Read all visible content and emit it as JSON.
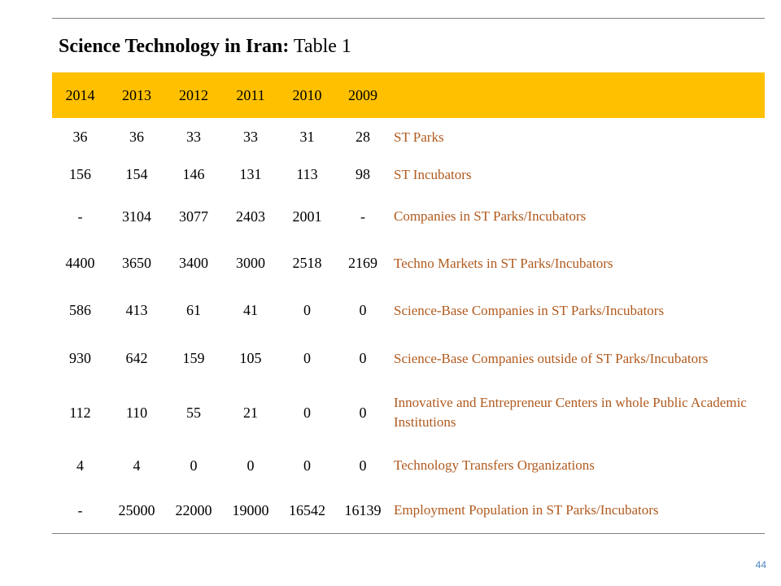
{
  "title": {
    "bold": "Science Technology in Iran:",
    "rest": " Table 1"
  },
  "columns": [
    "2014",
    "2013",
    "2012",
    "2011",
    "2010",
    "2009",
    ""
  ],
  "rows": [
    {
      "values": [
        "36",
        "36",
        "33",
        "33",
        "31",
        "28"
      ],
      "label": "ST Parks"
    },
    {
      "values": [
        "156",
        "154",
        "146",
        "131",
        "113",
        "98"
      ],
      "label": "ST Incubators"
    },
    {
      "values": [
        "-",
        "3104",
        "3077",
        "2403",
        "2001",
        "-"
      ],
      "label": "Companies in ST Parks/Incubators"
    },
    {
      "values": [
        "4400",
        "3650",
        "3400",
        "3000",
        "2518",
        "2169"
      ],
      "label": "Techno Markets in ST Parks/Incubators"
    },
    {
      "values": [
        "586",
        "413",
        "61",
        "41",
        "0",
        "0"
      ],
      "label": "Science-Base Companies in ST Parks/Incubators"
    },
    {
      "values": [
        "930",
        "642",
        "159",
        "105",
        "0",
        "0"
      ],
      "label": "Science-Base Companies outside of ST Parks/Incubators"
    },
    {
      "values": [
        "112",
        "110",
        "55",
        "21",
        "0",
        "0"
      ],
      "label": "Innovative and Entrepreneur Centers in whole Public Academic Institutions"
    },
    {
      "values": [
        "4",
        "4",
        "0",
        "0",
        "0",
        "0"
      ],
      "label": "Technology Transfers Organizations"
    },
    {
      "values": [
        "-",
        "25000",
        "22000",
        "19000",
        "16542",
        "16139"
      ],
      "label": "Employment Population in ST Parks/Incubators"
    }
  ],
  "page_number": "44",
  "colors": {
    "header_bg": "#ffc000",
    "label_text": "#b05a1e",
    "page_number": "#4a86c5"
  }
}
